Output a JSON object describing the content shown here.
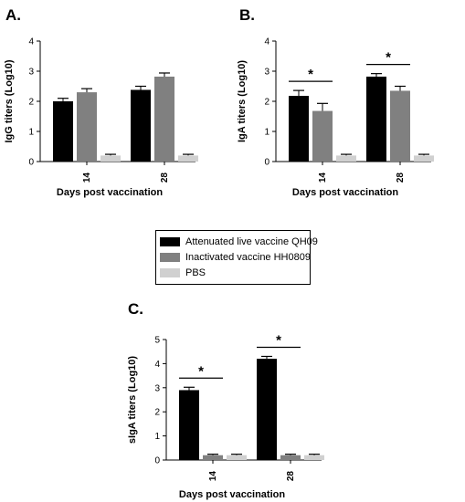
{
  "colors": {
    "attenuated": "#000000",
    "inactivated": "#808080",
    "pbs": "#d0d0d0"
  },
  "legend": [
    {
      "label": "Attenuated live vaccine QH09",
      "color": "#000000"
    },
    {
      "label": "Inactivated vaccine HH0809",
      "color": "#808080"
    },
    {
      "label": "PBS",
      "color": "#d0d0d0"
    }
  ],
  "chart_data": [
    {
      "type": "bar",
      "panel_label": "A.",
      "categories": [
        "14",
        "28"
      ],
      "ylabel": "IgG titers (Log10)",
      "xlabel": "Days post vaccination",
      "ylim": [
        0,
        4
      ],
      "yticks": [
        "0",
        "1",
        "2",
        "3",
        "4"
      ],
      "series": [
        {
          "name": "Attenuated live vaccine QH09",
          "values": [
            2.0,
            2.38
          ],
          "errors": [
            0.1,
            0.12
          ]
        },
        {
          "name": "Inactivated vaccine HH0809",
          "values": [
            2.3,
            2.82
          ],
          "errors": [
            0.12,
            0.12
          ]
        },
        {
          "name": "PBS",
          "values": [
            0.2,
            0.2
          ],
          "errors": [
            0.04,
            0.04
          ]
        }
      ],
      "significance": []
    },
    {
      "type": "bar",
      "panel_label": "B.",
      "categories": [
        "14",
        "28"
      ],
      "ylabel": "IgA titers (Log10)",
      "xlabel": "Days post vaccination",
      "ylim": [
        0,
        4
      ],
      "yticks": [
        "0",
        "1",
        "2",
        "3",
        "4"
      ],
      "series": [
        {
          "name": "Attenuated live vaccine QH09",
          "values": [
            2.18,
            2.82
          ],
          "errors": [
            0.18,
            0.1
          ]
        },
        {
          "name": "Inactivated vaccine HH0809",
          "values": [
            1.68,
            2.35
          ],
          "errors": [
            0.25,
            0.15
          ]
        },
        {
          "name": "PBS",
          "values": [
            0.2,
            0.2
          ],
          "errors": [
            0.04,
            0.04
          ]
        }
      ],
      "significance": [
        {
          "category_index": 0,
          "label": "*"
        },
        {
          "category_index": 1,
          "label": "*"
        }
      ]
    },
    {
      "type": "bar",
      "panel_label": "C.",
      "categories": [
        "14",
        "28"
      ],
      "ylabel": "sIgA titers (Log10)",
      "xlabel": "Days post vaccination",
      "ylim": [
        0,
        5
      ],
      "yticks": [
        "0",
        "1",
        "2",
        "3",
        "4",
        "5"
      ],
      "series": [
        {
          "name": "Attenuated live vaccine QH09",
          "values": [
            2.9,
            4.2
          ],
          "errors": [
            0.12,
            0.1
          ]
        },
        {
          "name": "Inactivated vaccine HH0809",
          "values": [
            0.2,
            0.2
          ],
          "errors": [
            0.04,
            0.04
          ]
        },
        {
          "name": "PBS",
          "values": [
            0.2,
            0.2
          ],
          "errors": [
            0.04,
            0.04
          ]
        }
      ],
      "significance": [
        {
          "category_index": 0,
          "label": "*"
        },
        {
          "category_index": 1,
          "label": "*"
        }
      ]
    }
  ]
}
